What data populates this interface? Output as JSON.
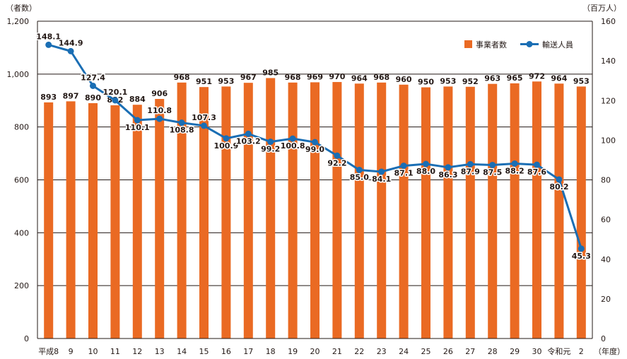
{
  "chart_data": {
    "type": "bar",
    "categories": [
      "平成8",
      "9",
      "10",
      "11",
      "12",
      "13",
      "14",
      "15",
      "16",
      "17",
      "18",
      "19",
      "20",
      "21",
      "22",
      "23",
      "24",
      "25",
      "26",
      "27",
      "28",
      "29",
      "30",
      "令和元",
      "2"
    ],
    "x_unit": "（年度）",
    "series": [
      {
        "name": "事業者数",
        "type": "bar",
        "axis": "left",
        "color": "#ea6a23",
        "values": [
          893,
          897,
          890,
          882,
          884,
          906,
          968,
          951,
          953,
          967,
          985,
          968,
          969,
          970,
          964,
          968,
          960,
          950,
          953,
          952,
          963,
          965,
          972,
          964,
          953
        ],
        "labels": [
          "893",
          "897",
          "890",
          "882",
          "884",
          "906",
          "968",
          "951",
          "953",
          "967",
          "985",
          "968",
          "969",
          "970",
          "964",
          "968",
          "960",
          "950",
          "953",
          "952",
          "963",
          "965",
          "972",
          "964",
          "953"
        ]
      },
      {
        "name": "輸送人員",
        "type": "line",
        "axis": "right",
        "color": "#1a6eb4",
        "values": [
          148.1,
          144.9,
          127.4,
          120.1,
          110.1,
          110.8,
          108.8,
          107.3,
          100.9,
          103.2,
          99.2,
          100.8,
          99.0,
          92.2,
          85.0,
          84.1,
          87.1,
          88.0,
          86.3,
          87.9,
          87.5,
          88.2,
          87.6,
          80.2,
          45.3
        ],
        "labels": [
          "148.1",
          "144.9",
          "127.4",
          "120.1",
          "110.1",
          "110.8",
          "108.8",
          "107.3",
          "100.9",
          "103.2",
          "99.2",
          "100.8",
          "99.0",
          "92.2",
          "85.0",
          "84.1",
          "87.1",
          "88.0",
          "86.3",
          "87.9",
          "87.5",
          "88.2",
          "87.6",
          "80.2",
          "45.3"
        ]
      }
    ],
    "y_left": {
      "unit": "（者数）",
      "min": 0,
      "max": 1200,
      "ticks": [
        0,
        200,
        400,
        600,
        800,
        1000,
        1200
      ],
      "tick_labels": [
        "0",
        "200",
        "400",
        "600",
        "800",
        "1,000",
        "1,200"
      ]
    },
    "y_right": {
      "unit": "（百万人）",
      "min": 0,
      "max": 160,
      "ticks": [
        0,
        20,
        40,
        60,
        80,
        100,
        120,
        140,
        160
      ],
      "tick_labels": [
        "0",
        "20",
        "40",
        "60",
        "80",
        "100",
        "120",
        "140",
        "160"
      ]
    },
    "grid": true,
    "legend_position": "top-right"
  }
}
